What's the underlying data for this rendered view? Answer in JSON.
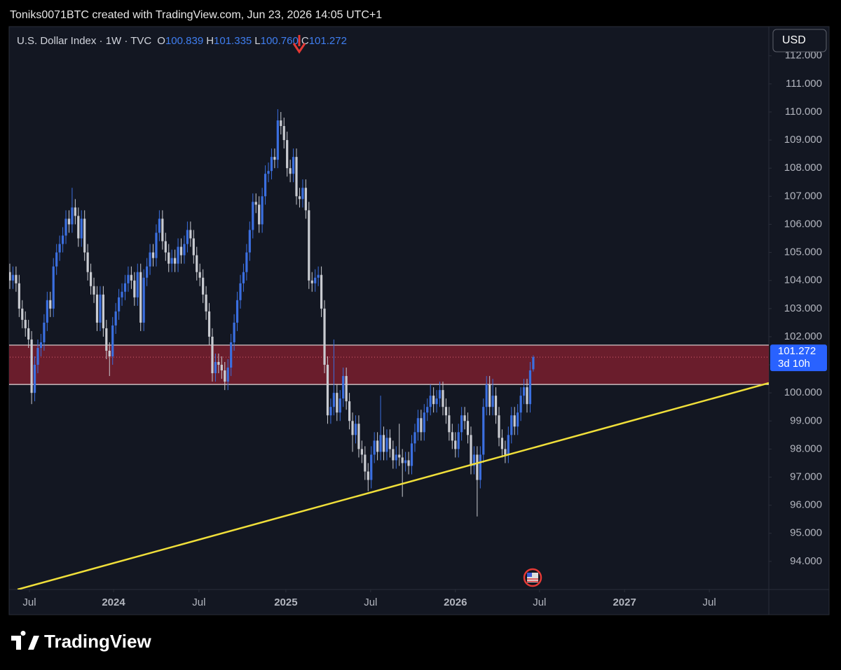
{
  "header": {
    "attribution": "Toniks0071BTC created with TradingView.com, Jun 23, 2026 14:05 UTC+1",
    "usd_button": "USD",
    "logo": "TradingView"
  },
  "chart_data": {
    "type": "candlestick",
    "title": "U.S. Dollar Index · 1W · TVC",
    "ohlc_legend": [
      {
        "key": "O",
        "value": "100.839"
      },
      {
        "key": "H",
        "value": "101.335"
      },
      {
        "key": "L",
        "value": "100.760"
      },
      {
        "key": "C",
        "value": "101.272"
      }
    ],
    "up_color": "#3b6fe0",
    "down_color": "#c9cbd1",
    "ohlc": [
      [
        104.3,
        104.6,
        103.7,
        104.0
      ],
      [
        104.0,
        104.5,
        103.7,
        104.2
      ],
      [
        104.2,
        104.5,
        103.6,
        103.9
      ],
      [
        103.9,
        104.2,
        102.7,
        103.0
      ],
      [
        103.0,
        103.3,
        102.3,
        102.6
      ],
      [
        102.6,
        102.9,
        102.0,
        102.3
      ],
      [
        102.3,
        102.6,
        101.6,
        101.9
      ],
      [
        101.9,
        102.2,
        99.6,
        100.0
      ],
      [
        100.0,
        101.3,
        99.7,
        101.0
      ],
      [
        101.0,
        101.9,
        100.7,
        101.6
      ],
      [
        101.6,
        102.1,
        101.3,
        101.8
      ],
      [
        101.8,
        102.8,
        101.5,
        102.5
      ],
      [
        102.5,
        103.6,
        102.2,
        103.3
      ],
      [
        103.3,
        103.6,
        102.7,
        103.0
      ],
      [
        103.0,
        104.8,
        102.7,
        104.5
      ],
      [
        104.5,
        105.3,
        104.2,
        105.0
      ],
      [
        105.0,
        105.6,
        104.7,
        105.3
      ],
      [
        105.3,
        105.9,
        105.0,
        105.6
      ],
      [
        105.6,
        106.5,
        105.3,
        106.2
      ],
      [
        106.2,
        106.5,
        105.7,
        106.0
      ],
      [
        106.0,
        107.3,
        105.7,
        106.6
      ],
      [
        106.6,
        106.9,
        106.0,
        106.3
      ],
      [
        106.3,
        106.6,
        105.2,
        105.5
      ],
      [
        105.5,
        106.5,
        105.2,
        106.2
      ],
      [
        106.2,
        106.5,
        104.7,
        105.0
      ],
      [
        105.0,
        105.3,
        104.0,
        104.3
      ],
      [
        104.3,
        104.6,
        103.5,
        103.8
      ],
      [
        103.8,
        104.1,
        103.2,
        103.5
      ],
      [
        103.5,
        103.8,
        102.2,
        102.5
      ],
      [
        102.5,
        103.8,
        102.2,
        103.5
      ],
      [
        103.5,
        103.8,
        102.0,
        102.3
      ],
      [
        102.3,
        102.6,
        101.2,
        101.5
      ],
      [
        101.5,
        101.8,
        100.6,
        101.3
      ],
      [
        101.3,
        102.7,
        101.0,
        102.4
      ],
      [
        102.4,
        103.2,
        102.1,
        102.9
      ],
      [
        102.9,
        103.7,
        102.6,
        103.4
      ],
      [
        103.4,
        103.9,
        103.1,
        103.6
      ],
      [
        103.6,
        104.2,
        103.3,
        103.9
      ],
      [
        103.9,
        104.5,
        103.6,
        104.2
      ],
      [
        104.2,
        104.5,
        103.7,
        104.0
      ],
      [
        104.0,
        104.3,
        103.1,
        103.4
      ],
      [
        103.4,
        104.6,
        103.1,
        104.3
      ],
      [
        104.3,
        104.6,
        102.2,
        102.5
      ],
      [
        102.5,
        104.4,
        102.2,
        104.1
      ],
      [
        104.1,
        104.8,
        103.8,
        104.5
      ],
      [
        104.5,
        105.3,
        104.2,
        105.0
      ],
      [
        105.0,
        105.3,
        104.5,
        104.8
      ],
      [
        104.8,
        106.0,
        104.5,
        105.7
      ],
      [
        105.7,
        106.5,
        105.4,
        106.2
      ],
      [
        106.2,
        106.5,
        105.1,
        105.4
      ],
      [
        105.4,
        105.7,
        104.7,
        105.0
      ],
      [
        105.0,
        105.3,
        104.3,
        104.6
      ],
      [
        104.6,
        105.1,
        104.3,
        104.8
      ],
      [
        104.8,
        105.1,
        104.3,
        104.6
      ],
      [
        104.6,
        105.5,
        104.3,
        105.2
      ],
      [
        105.2,
        105.5,
        104.6,
        104.9
      ],
      [
        104.9,
        105.6,
        104.6,
        105.3
      ],
      [
        105.3,
        106.1,
        105.0,
        105.8
      ],
      [
        105.8,
        106.1,
        105.2,
        105.5
      ],
      [
        105.5,
        105.8,
        104.6,
        104.9
      ],
      [
        104.9,
        105.2,
        104.0,
        104.3
      ],
      [
        104.3,
        104.6,
        103.8,
        104.1
      ],
      [
        104.1,
        104.4,
        103.2,
        103.5
      ],
      [
        103.5,
        103.8,
        102.6,
        102.9
      ],
      [
        102.9,
        103.2,
        101.7,
        102.0
      ],
      [
        102.0,
        102.3,
        100.4,
        100.7
      ],
      [
        100.7,
        101.4,
        100.4,
        101.1
      ],
      [
        101.1,
        101.4,
        100.7,
        101.0
      ],
      [
        101.0,
        101.3,
        100.5,
        100.8
      ],
      [
        100.8,
        101.1,
        100.1,
        100.4
      ],
      [
        100.4,
        101.2,
        100.1,
        100.9
      ],
      [
        100.9,
        102.1,
        100.6,
        101.8
      ],
      [
        101.8,
        102.8,
        101.5,
        102.5
      ],
      [
        102.5,
        103.6,
        102.2,
        103.3
      ],
      [
        103.3,
        104.2,
        103.0,
        103.9
      ],
      [
        103.9,
        104.6,
        103.6,
        104.3
      ],
      [
        104.3,
        105.3,
        104.0,
        105.0
      ],
      [
        105.0,
        106.1,
        104.7,
        105.8
      ],
      [
        105.8,
        107.1,
        105.5,
        106.8
      ],
      [
        106.8,
        107.1,
        106.4,
        106.7
      ],
      [
        106.7,
        107.0,
        105.7,
        106.0
      ],
      [
        106.0,
        107.3,
        105.7,
        107.0
      ],
      [
        107.0,
        108.1,
        106.7,
        107.8
      ],
      [
        107.8,
        108.2,
        107.5,
        107.9
      ],
      [
        107.9,
        108.7,
        107.6,
        108.4
      ],
      [
        108.4,
        108.7,
        108.0,
        108.3
      ],
      [
        108.3,
        110.1,
        108.0,
        109.7
      ],
      [
        109.7,
        110.0,
        109.2,
        109.5
      ],
      [
        109.5,
        109.8,
        108.7,
        109.0
      ],
      [
        109.0,
        109.3,
        107.7,
        108.0
      ],
      [
        108.0,
        108.3,
        107.5,
        107.8
      ],
      [
        107.8,
        108.7,
        107.5,
        108.4
      ],
      [
        108.4,
        108.7,
        106.7,
        107.0
      ],
      [
        107.0,
        107.3,
        106.6,
        106.9
      ],
      [
        106.9,
        107.6,
        106.6,
        107.3
      ],
      [
        107.3,
        107.6,
        106.2,
        106.5
      ],
      [
        106.5,
        106.8,
        103.7,
        104.0
      ],
      [
        104.0,
        104.3,
        103.6,
        103.9
      ],
      [
        103.9,
        104.4,
        103.6,
        104.1
      ],
      [
        104.1,
        104.5,
        103.8,
        104.2
      ],
      [
        104.2,
        104.5,
        102.7,
        103.0
      ],
      [
        103.0,
        103.3,
        100.7,
        101.0
      ],
      [
        101.0,
        101.3,
        98.9,
        99.2
      ],
      [
        99.2,
        99.8,
        98.9,
        99.5
      ],
      [
        99.5,
        101.9,
        99.2,
        100.0
      ],
      [
        100.0,
        100.3,
        99.0,
        99.3
      ],
      [
        99.3,
        100.1,
        99.0,
        99.8
      ],
      [
        99.8,
        100.9,
        99.5,
        100.6
      ],
      [
        100.6,
        100.9,
        99.4,
        99.7
      ],
      [
        99.7,
        100.0,
        98.7,
        99.0
      ],
      [
        99.0,
        99.3,
        97.9,
        98.5
      ],
      [
        98.5,
        99.2,
        98.2,
        98.9
      ],
      [
        98.9,
        99.2,
        97.7,
        98.0
      ],
      [
        98.0,
        98.3,
        97.5,
        97.8
      ],
      [
        97.8,
        98.1,
        96.9,
        97.2
      ],
      [
        97.2,
        97.5,
        96.5,
        96.9
      ],
      [
        96.9,
        98.1,
        96.6,
        97.8
      ],
      [
        97.8,
        98.6,
        97.5,
        98.3
      ],
      [
        98.3,
        98.6,
        97.6,
        97.9
      ],
      [
        97.9,
        99.9,
        97.6,
        98.5
      ],
      [
        98.5,
        98.8,
        97.6,
        97.9
      ],
      [
        97.9,
        98.7,
        97.6,
        98.4
      ],
      [
        98.4,
        98.7,
        97.7,
        98.0
      ],
      [
        98.0,
        98.3,
        97.3,
        97.6
      ],
      [
        97.6,
        98.1,
        97.3,
        97.8
      ],
      [
        97.8,
        98.9,
        97.4,
        97.7
      ],
      [
        97.7,
        98.0,
        96.3,
        97.5
      ],
      [
        97.5,
        97.9,
        97.2,
        97.6
      ],
      [
        97.6,
        97.9,
        97.1,
        97.4
      ],
      [
        97.4,
        98.5,
        97.1,
        98.2
      ],
      [
        98.2,
        98.9,
        97.9,
        98.6
      ],
      [
        98.6,
        99.4,
        98.3,
        99.1
      ],
      [
        99.1,
        99.4,
        98.3,
        98.6
      ],
      [
        98.6,
        99.6,
        98.3,
        99.3
      ],
      [
        99.3,
        99.8,
        99.0,
        99.5
      ],
      [
        99.5,
        100.3,
        99.2,
        99.9
      ],
      [
        99.9,
        100.2,
        99.3,
        99.6
      ],
      [
        99.6,
        100.1,
        99.3,
        99.8
      ],
      [
        99.8,
        100.4,
        99.5,
        100.1
      ],
      [
        100.1,
        100.4,
        99.2,
        99.5
      ],
      [
        99.5,
        99.8,
        98.9,
        99.2
      ],
      [
        99.2,
        99.5,
        98.3,
        98.6
      ],
      [
        98.6,
        98.9,
        98.0,
        98.3
      ],
      [
        98.3,
        98.6,
        97.7,
        98.0
      ],
      [
        98.0,
        98.9,
        97.7,
        98.6
      ],
      [
        98.6,
        99.5,
        98.3,
        99.2
      ],
      [
        99.2,
        99.5,
        98.7,
        99.0
      ],
      [
        99.0,
        99.3,
        98.2,
        98.5
      ],
      [
        98.5,
        98.8,
        97.1,
        97.4
      ],
      [
        97.4,
        98.1,
        97.1,
        97.8
      ],
      [
        97.8,
        98.1,
        95.6,
        96.9
      ],
      [
        96.9,
        98.1,
        96.6,
        97.8
      ],
      [
        97.8,
        99.8,
        97.5,
        99.5
      ],
      [
        99.5,
        100.6,
        99.2,
        100.3
      ],
      [
        100.3,
        100.6,
        99.2,
        99.5
      ],
      [
        99.5,
        100.5,
        99.2,
        99.9
      ],
      [
        99.9,
        100.2,
        98.9,
        99.2
      ],
      [
        99.2,
        99.5,
        98.1,
        98.4
      ],
      [
        98.4,
        98.7,
        97.7,
        98.0
      ],
      [
        98.0,
        98.3,
        97.5,
        97.8
      ],
      [
        97.8,
        98.8,
        97.5,
        98.5
      ],
      [
        98.5,
        99.5,
        98.2,
        99.2
      ],
      [
        99.2,
        99.5,
        98.5,
        98.8
      ],
      [
        98.8,
        99.6,
        98.5,
        99.3
      ],
      [
        99.3,
        100.2,
        99.0,
        99.9
      ],
      [
        99.9,
        100.5,
        99.6,
        100.2
      ],
      [
        100.2,
        100.5,
        99.3,
        99.6
      ],
      [
        99.6,
        101.1,
        99.3,
        100.8
      ],
      [
        100.839,
        101.335,
        100.76,
        101.272
      ]
    ],
    "xlim": [
      0,
      243.6
    ],
    "xticks": [
      {
        "value": 6.3,
        "label": "Jul"
      },
      {
        "value": 33.3,
        "label": "2024"
      },
      {
        "value": 60.7,
        "label": "Jul"
      },
      {
        "value": 88.6,
        "label": "2025"
      },
      {
        "value": 115.8,
        "label": "Jul"
      },
      {
        "value": 143,
        "label": "2026"
      },
      {
        "value": 170,
        "label": "Jul"
      },
      {
        "value": 197.3,
        "label": "2027"
      },
      {
        "value": 224.5,
        "label": "Jul"
      }
    ],
    "ylim": [
      93.0,
      113.04
    ],
    "yticks": [
      {
        "value": 94,
        "label": "94.000"
      },
      {
        "value": 95,
        "label": "95.000"
      },
      {
        "value": 96,
        "label": "96.000"
      },
      {
        "value": 97,
        "label": "97.000"
      },
      {
        "value": 98,
        "label": "98.000"
      },
      {
        "value": 99,
        "label": "99.000"
      },
      {
        "value": 100,
        "label": "100.000"
      },
      {
        "value": 101,
        "label": "101.000"
      },
      {
        "value": 102,
        "label": "102.000"
      },
      {
        "value": 103,
        "label": "103.000"
      },
      {
        "value": 104,
        "label": "104.000"
      },
      {
        "value": 105,
        "label": "105.000"
      },
      {
        "value": 106,
        "label": "106.000"
      },
      {
        "value": 107,
        "label": "107.000"
      },
      {
        "value": 108,
        "label": "108.000"
      },
      {
        "value": 109,
        "label": "109.000"
      },
      {
        "value": 110,
        "label": "110.000"
      },
      {
        "value": 111,
        "label": "111.000"
      },
      {
        "value": 112,
        "label": "112.000"
      }
    ],
    "zone": {
      "from": 100.3,
      "to": 101.7,
      "color": "#7a1f2e"
    },
    "trend_line": {
      "x": [
        2.5,
        243.6
      ],
      "y": [
        93.0,
        100.35
      ],
      "color": "#f0df3a"
    },
    "last_price": {
      "value": 101.272,
      "label": "101.272",
      "countdown": "3d 10h",
      "color": "#2962ff"
    }
  }
}
